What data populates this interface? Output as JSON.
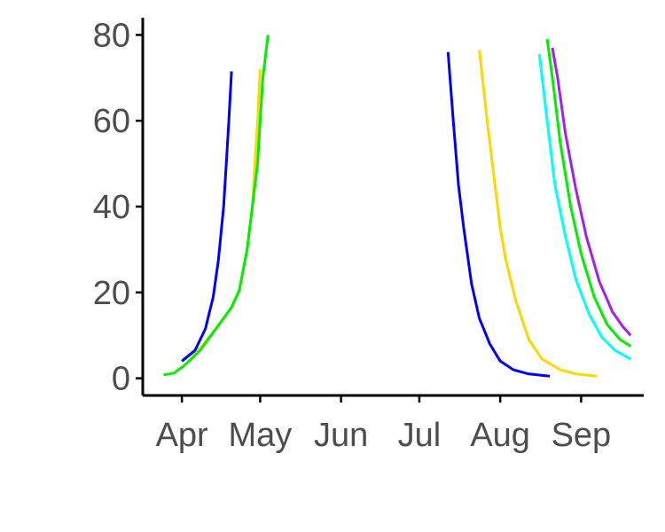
{
  "chart_data": {
    "type": "line",
    "title": "",
    "xlabel": "",
    "ylabel": "",
    "x_axis": {
      "type": "date",
      "range": [
        "2021-03-17",
        "2021-09-25"
      ],
      "ticks": [
        {
          "date": "2021-04-01",
          "label": "Apr"
        },
        {
          "date": "2021-05-01",
          "label": "May"
        },
        {
          "date": "2021-06-01",
          "label": "Jun"
        },
        {
          "date": "2021-07-01",
          "label": "Jul"
        },
        {
          "date": "2021-08-01",
          "label": "Aug"
        },
        {
          "date": "2021-09-01",
          "label": "Sep"
        }
      ]
    },
    "y_axis": {
      "range": [
        -4,
        84
      ],
      "ticks": [
        {
          "value": 0,
          "label": "0"
        },
        {
          "value": 20,
          "label": "20"
        },
        {
          "value": 40,
          "label": "40"
        },
        {
          "value": 60,
          "label": "60"
        },
        {
          "value": 80,
          "label": "80"
        }
      ]
    },
    "grid": false,
    "legend": "none",
    "series": [
      {
        "color": "#ffd700",
        "points": [
          [
            "2021-04-01",
            4.0
          ],
          [
            "2021-04-08",
            7.0
          ],
          [
            "2021-04-14",
            11.5
          ],
          [
            "2021-04-20",
            16.5
          ],
          [
            "2021-04-23",
            20.5
          ],
          [
            "2021-04-26",
            30.0
          ],
          [
            "2021-04-28",
            40.0
          ],
          [
            "2021-04-29",
            50.0
          ],
          [
            "2021-04-30",
            60.0
          ],
          [
            "2021-05-01",
            72.0
          ]
        ]
      },
      {
        "color": "#0000ff",
        "points": [
          [
            "2021-04-01",
            4.0
          ],
          [
            "2021-04-06",
            6.5
          ],
          [
            "2021-04-10",
            11.5
          ],
          [
            "2021-04-13",
            19.0
          ],
          [
            "2021-04-15",
            27.5
          ],
          [
            "2021-04-17",
            40.0
          ],
          [
            "2021-04-18",
            50.0
          ],
          [
            "2021-04-19",
            60.0
          ],
          [
            "2021-04-20",
            71.5
          ]
        ]
      },
      {
        "color": "#00ee00",
        "points": [
          [
            "2021-03-25",
            0.8
          ],
          [
            "2021-03-29",
            1.2
          ],
          [
            "2021-04-02",
            3.0
          ],
          [
            "2021-04-08",
            6.5
          ],
          [
            "2021-04-14",
            11.5
          ],
          [
            "2021-04-20",
            16.5
          ],
          [
            "2021-04-23",
            20.5
          ],
          [
            "2021-04-26",
            30.0
          ],
          [
            "2021-04-28",
            40.0
          ],
          [
            "2021-04-30",
            50.0
          ],
          [
            "2021-05-01",
            60.0
          ],
          [
            "2021-05-02",
            70.0
          ],
          [
            "2021-05-04",
            80.0
          ]
        ]
      },
      {
        "color": "#0000ff",
        "points": [
          [
            "2021-07-12",
            76.0
          ],
          [
            "2021-07-14",
            60.0
          ],
          [
            "2021-07-16",
            45.0
          ],
          [
            "2021-07-18",
            35.0
          ],
          [
            "2021-07-21",
            22.0
          ],
          [
            "2021-07-24",
            14.0
          ],
          [
            "2021-07-28",
            8.0
          ],
          [
            "2021-08-01",
            4.0
          ],
          [
            "2021-08-06",
            2.0
          ],
          [
            "2021-08-12",
            1.0
          ],
          [
            "2021-08-20",
            0.5
          ]
        ]
      },
      {
        "color": "#ffd700",
        "points": [
          [
            "2021-07-24",
            76.5
          ],
          [
            "2021-07-27",
            60.0
          ],
          [
            "2021-07-29",
            50.0
          ],
          [
            "2021-08-01",
            35.0
          ],
          [
            "2021-08-03",
            28.0
          ],
          [
            "2021-08-07",
            18.0
          ],
          [
            "2021-08-12",
            9.0
          ],
          [
            "2021-08-17",
            4.5
          ],
          [
            "2021-08-24",
            2.0
          ],
          [
            "2021-08-30",
            1.0
          ],
          [
            "2021-09-07",
            0.5
          ]
        ]
      },
      {
        "color": "#00ffff",
        "points": [
          [
            "2021-08-16",
            75.5
          ],
          [
            "2021-08-19",
            60.0
          ],
          [
            "2021-08-22",
            45.0
          ],
          [
            "2021-08-26",
            33.0
          ],
          [
            "2021-08-30",
            23.0
          ],
          [
            "2021-09-04",
            15.0
          ],
          [
            "2021-09-09",
            9.5
          ],
          [
            "2021-09-14",
            6.5
          ],
          [
            "2021-09-20",
            4.5
          ]
        ]
      },
      {
        "color": "#00ee00",
        "points": [
          [
            "2021-08-19",
            79.0
          ],
          [
            "2021-08-21",
            70.0
          ],
          [
            "2021-08-24",
            55.0
          ],
          [
            "2021-08-28",
            40.0
          ],
          [
            "2021-09-01",
            29.0
          ],
          [
            "2021-09-06",
            19.0
          ],
          [
            "2021-09-11",
            12.5
          ],
          [
            "2021-09-16",
            9.0
          ],
          [
            "2021-09-20",
            7.5
          ]
        ]
      },
      {
        "color": "#a020f0",
        "points": [
          [
            "2021-08-21",
            77.0
          ],
          [
            "2021-08-23",
            70.0
          ],
          [
            "2021-08-26",
            57.0
          ],
          [
            "2021-08-30",
            44.0
          ],
          [
            "2021-09-03",
            33.0
          ],
          [
            "2021-09-08",
            22.5
          ],
          [
            "2021-09-13",
            15.5
          ],
          [
            "2021-09-17",
            12.0
          ],
          [
            "2021-09-20",
            10.0
          ]
        ]
      }
    ]
  }
}
